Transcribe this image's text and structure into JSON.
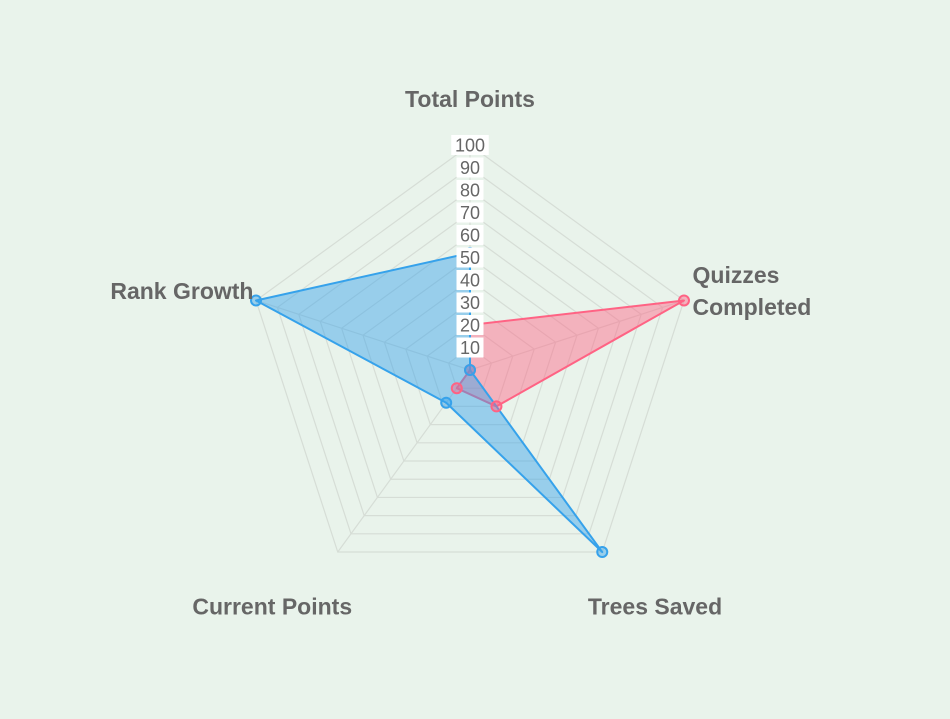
{
  "chart_data": {
    "type": "radar",
    "axes": [
      "Total Points",
      "Quizzes Completed",
      "Trees Saved",
      "Current Points",
      "Rank Growth"
    ],
    "axis_label_lines": [
      [
        "Total Points"
      ],
      [
        "Quizzes",
        "Completed"
      ],
      [
        "Trees Saved"
      ],
      [
        "Current Points"
      ],
      [
        "Rank Growth"
      ]
    ],
    "r_range": [
      0,
      100
    ],
    "ticks": [
      10,
      20,
      30,
      40,
      50,
      60,
      70,
      80,
      90,
      100
    ],
    "tick_labels": [
      "10",
      "20",
      "30",
      "40",
      "50",
      "60",
      "70",
      "80",
      "90",
      "100"
    ],
    "grid": true,
    "series": [
      {
        "values": [
          20,
          100,
          20,
          10,
          0
        ],
        "color": "#ff6384",
        "fill": "rgba(255,99,132,0.45)"
      },
      {
        "values": [
          52,
          0,
          100,
          18,
          100
        ],
        "color": "#36a2eb",
        "fill": "rgba(54,162,235,0.45)"
      }
    ]
  }
}
